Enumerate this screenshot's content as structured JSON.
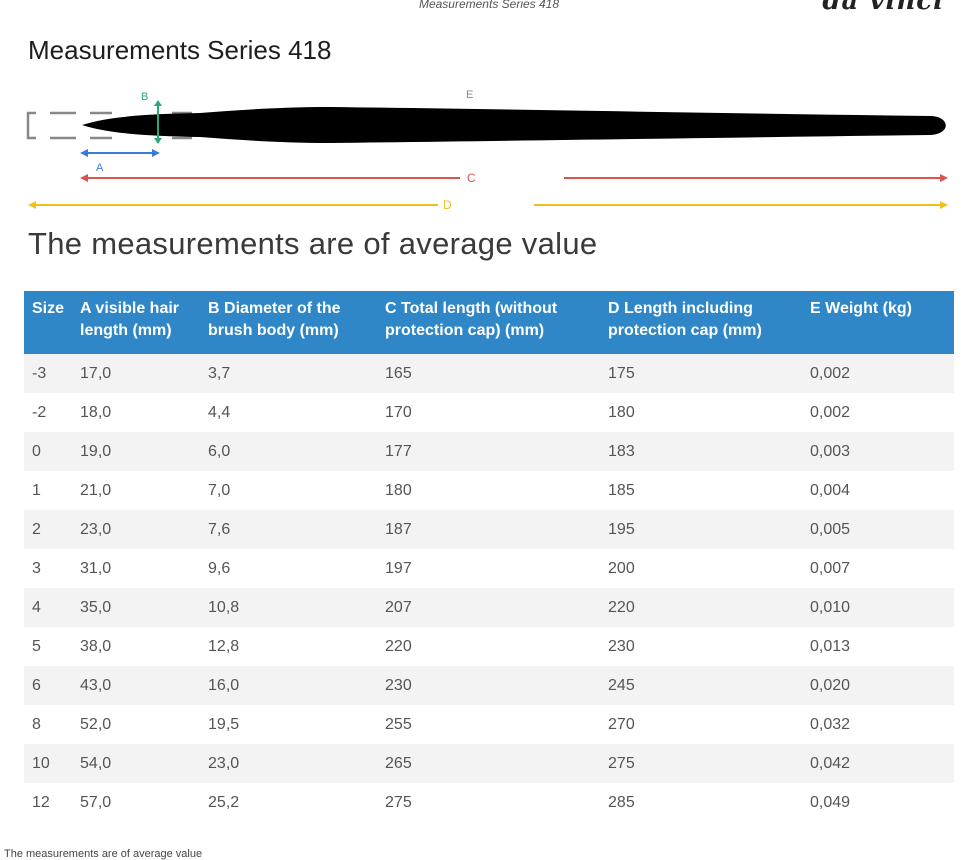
{
  "header": {
    "title": "Measurements Series 418",
    "brand": "da vinci"
  },
  "page_title": "Measurements Series 418",
  "diagram": {
    "labels": {
      "a": "A",
      "b": "B",
      "c": "C",
      "d": "D",
      "e": "E"
    },
    "colors": {
      "a": "#3a7bd5",
      "b": "#2aa876",
      "c": "#d9534f",
      "d": "#f0c020",
      "brush": "#000000",
      "cap": "#888888"
    }
  },
  "subtitle": "The measurements are of average value",
  "table": {
    "headers": {
      "size": "Size",
      "a": "A visible hair length (mm)",
      "b": "B Diameter of the brush body (mm)",
      "c": "C Total length (without protection cap) (mm)",
      "d": "D Length including protection cap (mm)",
      "e": "E Weight (kg)"
    },
    "header_color": "#2f87c8",
    "rows": [
      {
        "size": "-3",
        "a": "17,0",
        "b": "3,7",
        "c": "165",
        "d": "175",
        "e": "0,002"
      },
      {
        "size": "-2",
        "a": "18,0",
        "b": "4,4",
        "c": "170",
        "d": "180",
        "e": "0,002"
      },
      {
        "size": "0",
        "a": "19,0",
        "b": "6,0",
        "c": "177",
        "d": "183",
        "e": "0,003"
      },
      {
        "size": "1",
        "a": "21,0",
        "b": "7,0",
        "c": "180",
        "d": "185",
        "e": "0,004"
      },
      {
        "size": "2",
        "a": "23,0",
        "b": "7,6",
        "c": "187",
        "d": "195",
        "e": "0,005"
      },
      {
        "size": "3",
        "a": "31,0",
        "b": "9,6",
        "c": "197",
        "d": "200",
        "e": "0,007"
      },
      {
        "size": "4",
        "a": "35,0",
        "b": "10,8",
        "c": "207",
        "d": "220",
        "e": "0,010"
      },
      {
        "size": "5",
        "a": "38,0",
        "b": "12,8",
        "c": "220",
        "d": "230",
        "e": "0,013"
      },
      {
        "size": "6",
        "a": "43,0",
        "b": "16,0",
        "c": "230",
        "d": "245",
        "e": "0,020"
      },
      {
        "size": "8",
        "a": "52,0",
        "b": "19,5",
        "c": "255",
        "d": "270",
        "e": "0,032"
      },
      {
        "size": "10",
        "a": "54,0",
        "b": "23,0",
        "c": "265",
        "d": "275",
        "e": "0,042"
      },
      {
        "size": "12",
        "a": "57,0",
        "b": "25,2",
        "c": "275",
        "d": "285",
        "e": "0,049"
      }
    ]
  },
  "footer_note": "The measurements are of average value"
}
